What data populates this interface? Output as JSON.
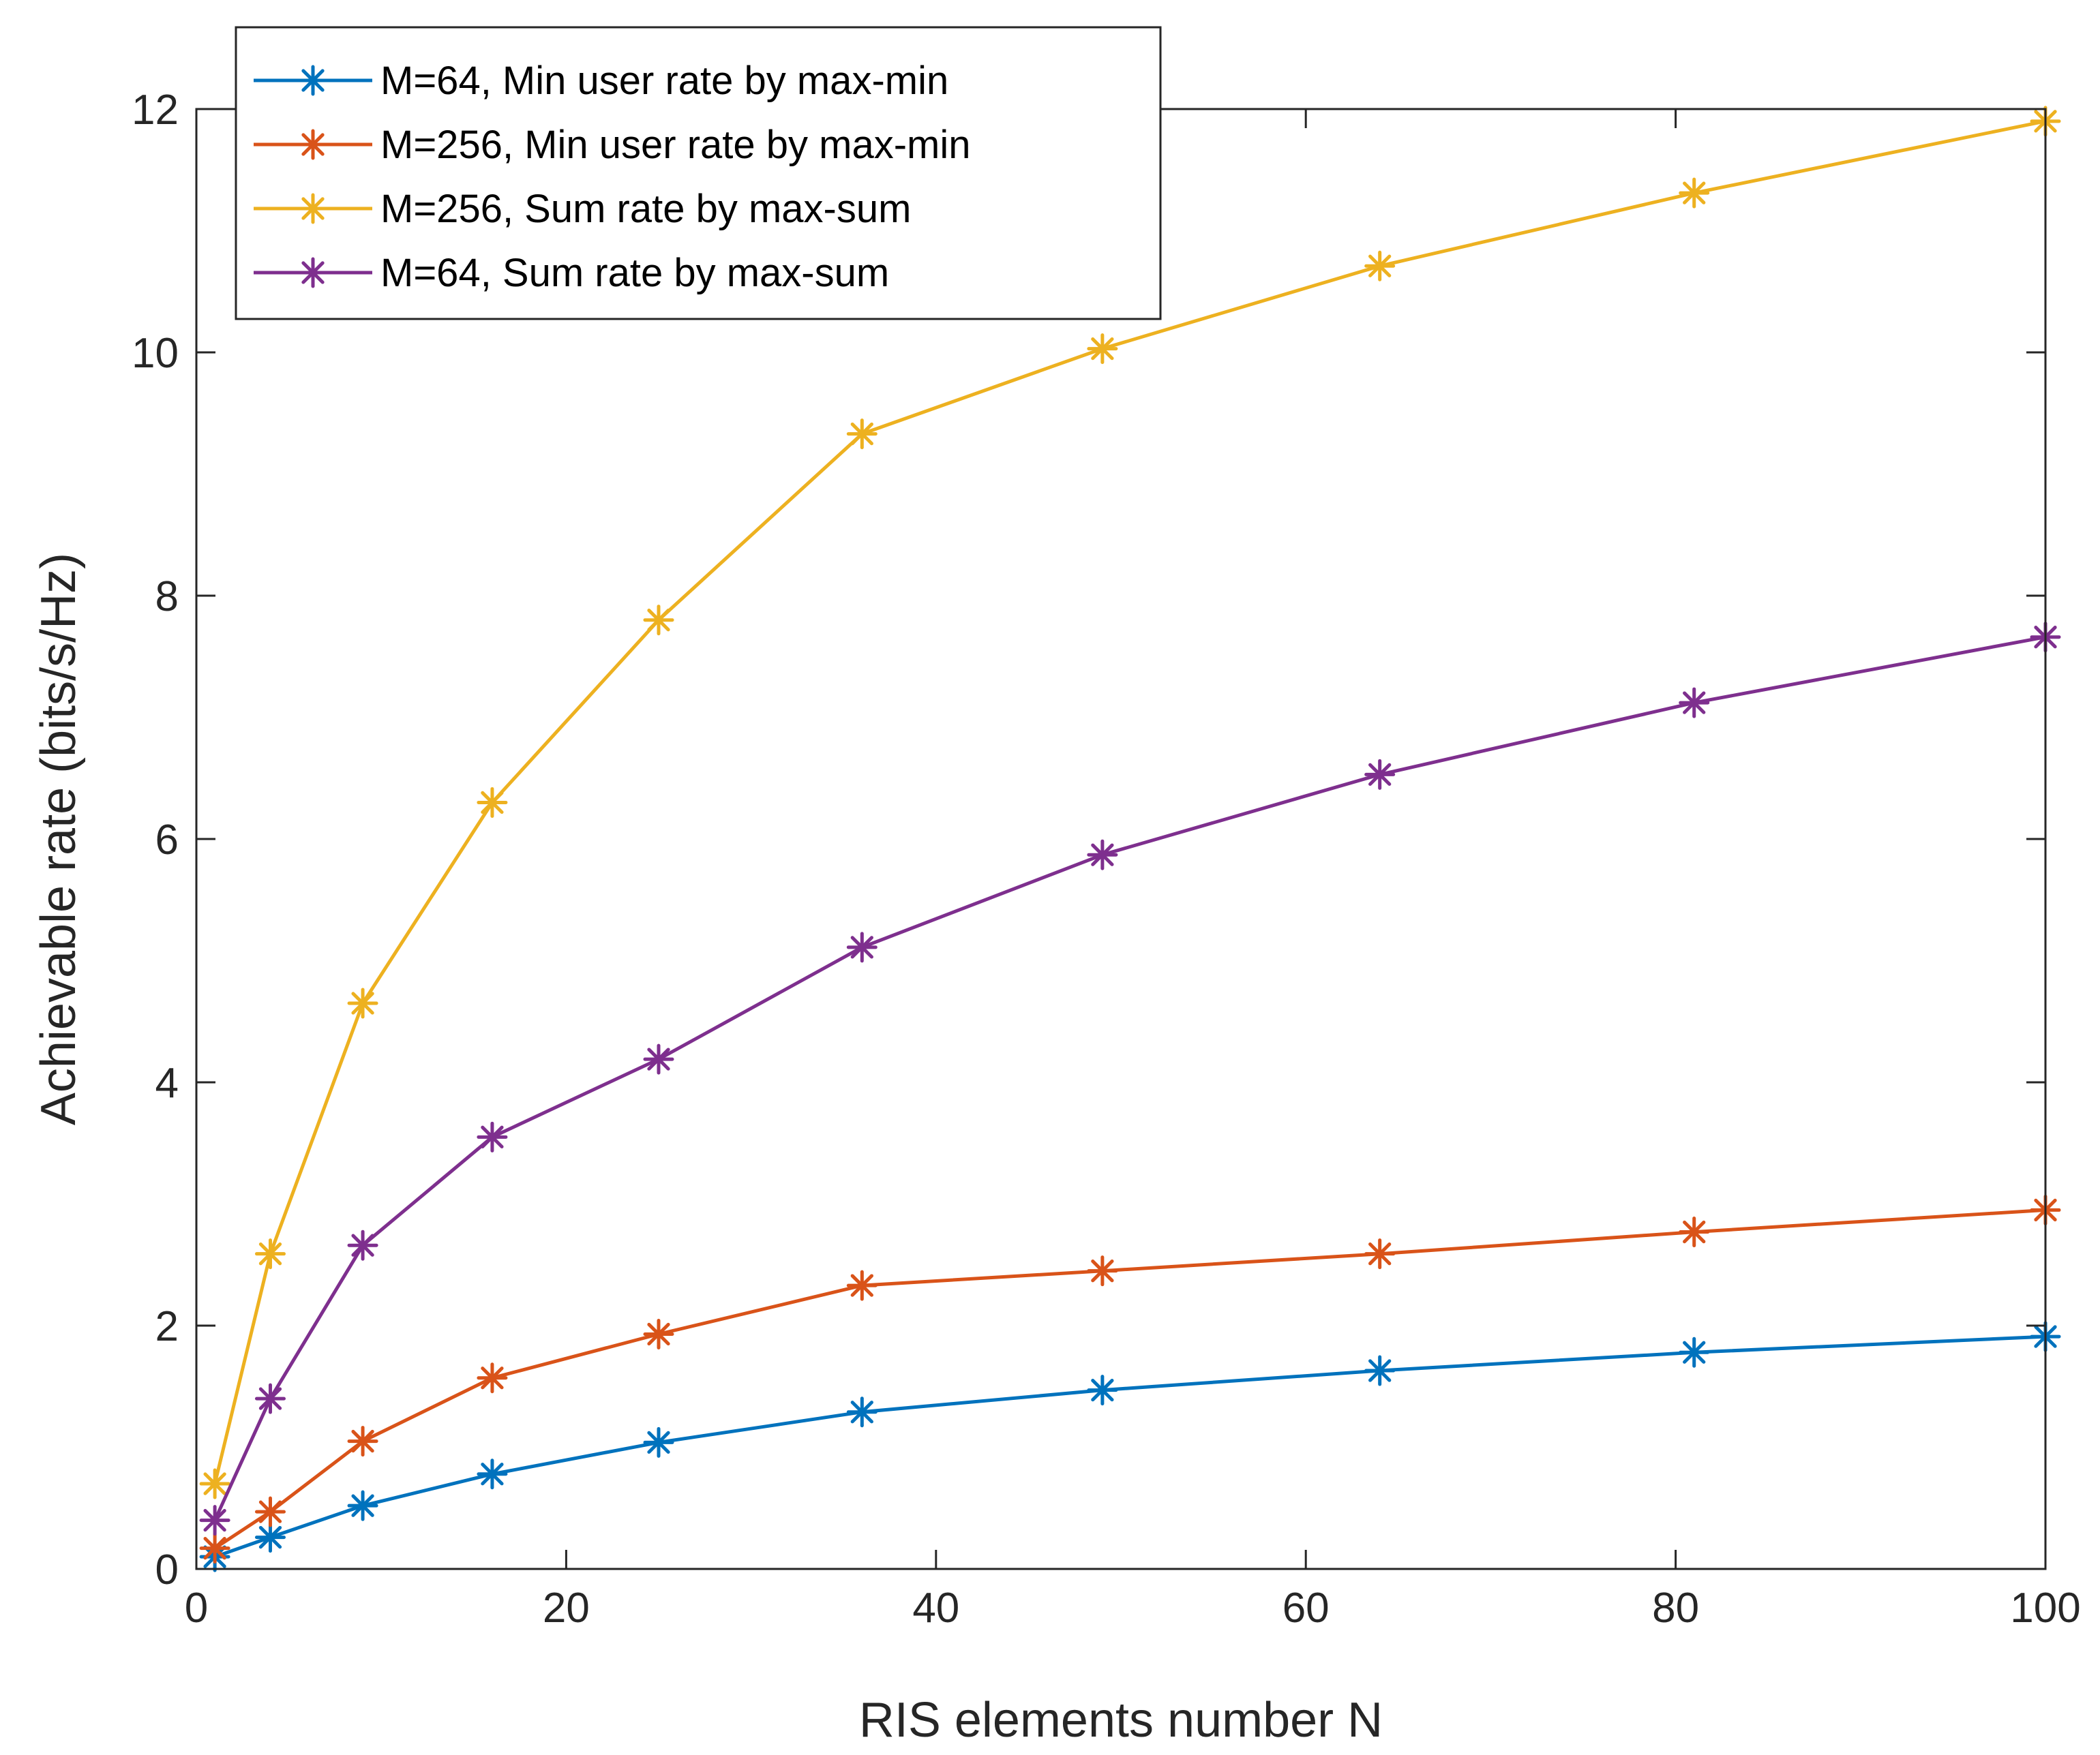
{
  "chart_data": {
    "type": "line",
    "title": "",
    "xlabel": "RIS elements number N",
    "ylabel": "Achievable rate (bits/s/Hz)",
    "xlim": [
      0,
      100
    ],
    "ylim": [
      0,
      12
    ],
    "xticks": [
      0,
      20,
      40,
      60,
      80,
      100
    ],
    "yticks": [
      0,
      2,
      4,
      6,
      8,
      10,
      12
    ],
    "xtick_labels": [
      "0",
      "20",
      "40",
      "60",
      "80",
      "100"
    ],
    "ytick_labels": [
      "0",
      "2",
      "4",
      "6",
      "8",
      "10",
      "12"
    ],
    "grid": false,
    "legend_position": "top-left",
    "marker": "asterisk",
    "x": [
      1,
      4,
      9,
      16,
      25,
      36,
      49,
      64,
      81,
      100
    ],
    "series": [
      {
        "name": "M=64, Min user rate by max-min",
        "color": "#0072BD",
        "values": [
          0.1,
          0.26,
          0.52,
          0.78,
          1.04,
          1.29,
          1.47,
          1.63,
          1.78,
          1.91
        ]
      },
      {
        "name": "M=256, Min user rate by max-min",
        "color": "#D95319",
        "values": [
          0.17,
          0.47,
          1.05,
          1.57,
          1.93,
          2.33,
          2.45,
          2.59,
          2.77,
          2.95
        ]
      },
      {
        "name": "M=256, Sum rate by max-sum",
        "color": "#EDB120",
        "values": [
          0.7,
          2.59,
          4.65,
          6.3,
          7.8,
          9.33,
          10.03,
          10.71,
          11.31,
          11.9
        ]
      },
      {
        "name": "M=64, Sum rate by max-sum",
        "color": "#7E2F8E",
        "values": [
          0.4,
          1.4,
          2.66,
          3.55,
          4.19,
          5.11,
          5.87,
          6.53,
          7.12,
          7.66
        ]
      }
    ]
  }
}
